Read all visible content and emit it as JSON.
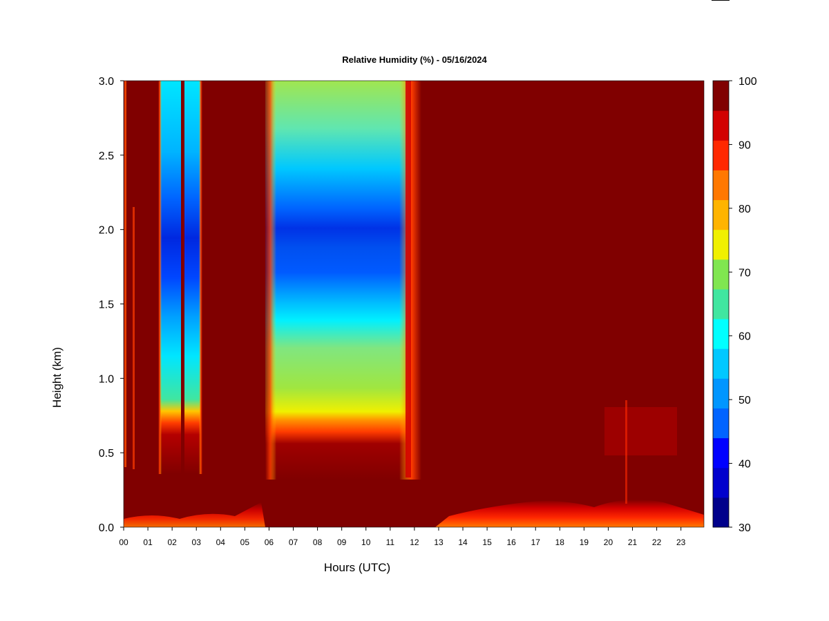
{
  "chart_data": {
    "type": "heatmap",
    "title": "Relative Humidity (%) - 05/16/2024",
    "xlabel": "Hours (UTC)",
    "ylabel": "Height (km)",
    "xlim": [
      0,
      23.95
    ],
    "ylim": [
      0,
      3.0
    ],
    "x_ticks": [
      "00",
      "01",
      "02",
      "03",
      "04",
      "05",
      "06",
      "07",
      "08",
      "09",
      "10",
      "11",
      "12",
      "13",
      "14",
      "15",
      "16",
      "17",
      "18",
      "19",
      "20",
      "21",
      "22",
      "23"
    ],
    "y_ticks": [
      "0.0",
      "0.5",
      "1.0",
      "1.5",
      "2.0",
      "2.5",
      "3.0"
    ],
    "colorbar": {
      "range": [
        30,
        100
      ],
      "tick_labels": [
        "30",
        "40",
        "50",
        "60",
        "70",
        "80",
        "90",
        "100"
      ],
      "colors": [
        "#00008b",
        "#0000cd",
        "#0000ff",
        "#0064ff",
        "#0096ff",
        "#00c8ff",
        "#00ffff",
        "#40e6a0",
        "#80e650",
        "#f0f000",
        "#ffb400",
        "#ff7800",
        "#ff2800",
        "#d20000",
        "#800000"
      ]
    },
    "profiles": [
      {
        "hours": [
          0.0,
          1.4
        ],
        "description_values": {
          "surface_0_0.3km": 100,
          "0.3_3.0km": 100
        }
      },
      {
        "hours": [
          1.4,
          2.4
        ],
        "values_by_height": {
          "0.0": 100,
          "0.35": 88,
          "0.45": 78,
          "0.6": 58,
          "1.0": 55,
          "1.4": 45,
          "1.8": 40,
          "2.2": 48,
          "2.6": 55,
          "3.0": 58
        }
      },
      {
        "hours": [
          2.4,
          2.6
        ],
        "values_by_height": {
          "all": 100
        }
      },
      {
        "hours": [
          2.6,
          3.2
        ],
        "values_by_height": {
          "0.0": 100,
          "0.35": 88,
          "0.45": 78,
          "0.6": 58,
          "1.0": 55,
          "1.4": 45,
          "1.8": 42,
          "2.2": 50,
          "2.6": 56,
          "3.0": 60
        }
      },
      {
        "hours": [
          3.2,
          5.8
        ],
        "values_by_height": {
          "all": 100
        }
      },
      {
        "hours": [
          5.8,
          12.2
        ],
        "values_by_height": {
          "0.0": 100,
          "0.3": 88,
          "0.4": 82,
          "0.5": 72,
          "0.7": 68,
          "1.0": 62,
          "1.3": 50,
          "1.5": 46,
          "1.8": 44,
          "2.2": 55,
          "2.6": 64,
          "3.0": 68
        }
      },
      {
        "hours": [
          12.2,
          23.95
        ],
        "values_by_height": {
          "0.0": 90,
          "0.1": 95,
          "0.2": 100,
          "3.0": 100
        }
      }
    ]
  }
}
